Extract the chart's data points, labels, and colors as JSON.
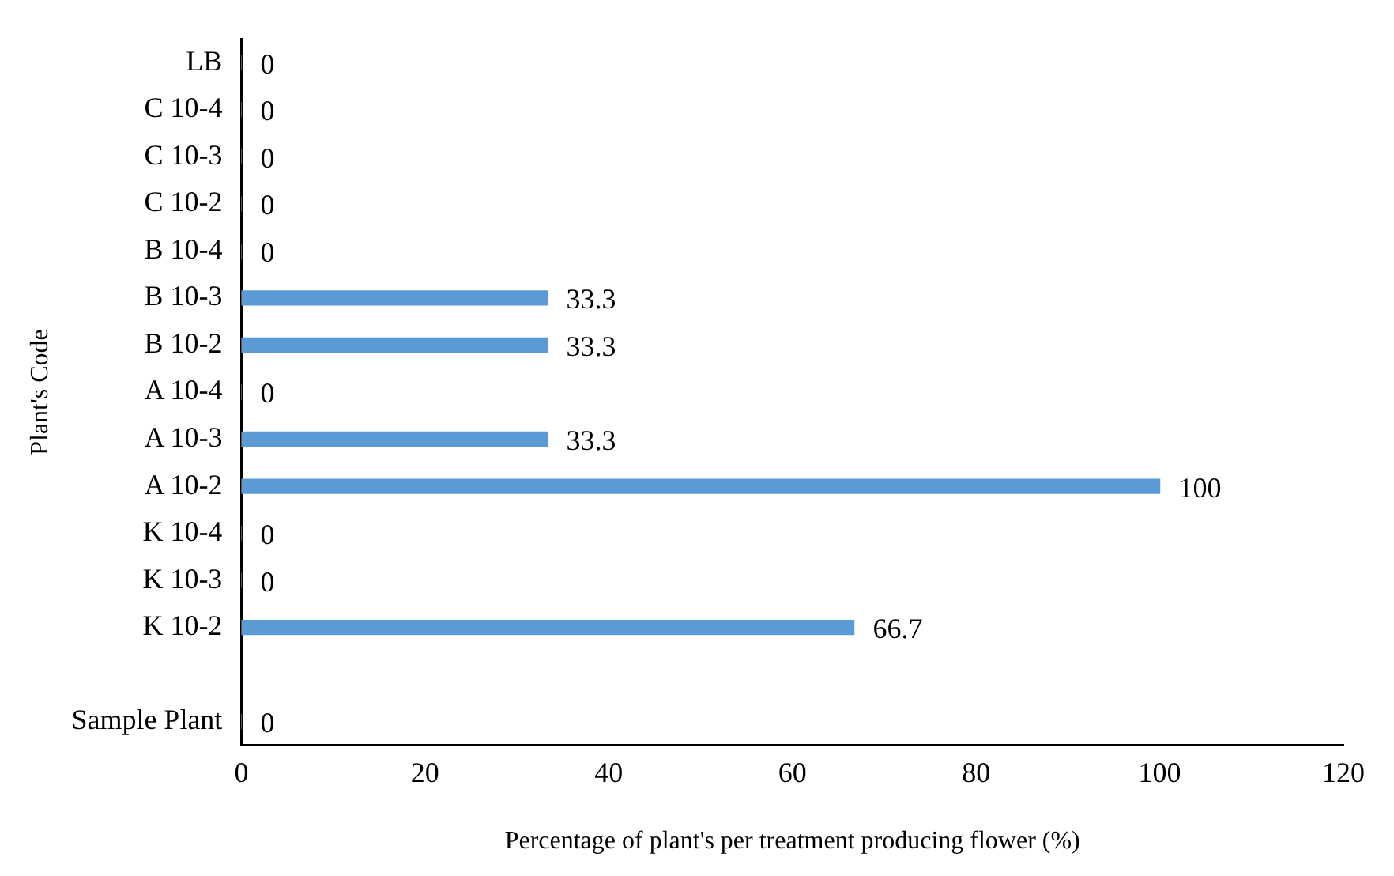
{
  "chart_data": {
    "type": "bar",
    "orientation": "horizontal",
    "xlabel": "Percentage of plant's per treatment producing flower (%)",
    "ylabel": "Plant's Code",
    "categories": [
      "LB",
      "C 10-4",
      "C 10-3",
      "C 10-2",
      "B 10-4",
      "B 10-3",
      "B 10-2",
      "A 10-4",
      "A 10-3",
      "A 10-2",
      "K 10-4",
      "K 10-3",
      "K 10-2",
      null,
      "Sample Plant"
    ],
    "values": [
      0,
      0,
      0,
      0,
      0,
      33.3,
      33.3,
      0,
      33.3,
      100,
      0,
      0,
      66.7,
      null,
      0
    ],
    "color": "#5b9bd5",
    "xlim": [
      0,
      120
    ],
    "xticks": [
      0,
      20,
      40,
      60,
      80,
      100,
      120
    ],
    "grid": false,
    "legend": false,
    "data_labels": true
  }
}
